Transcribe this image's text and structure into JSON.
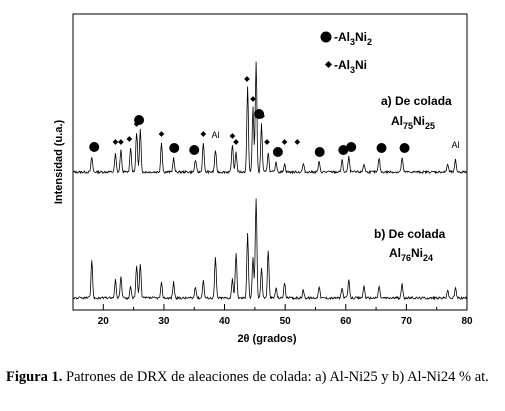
{
  "chart_data": {
    "type": "line",
    "xlabel": "2θ (grados)",
    "ylabel": "Intensidad (u.a.)",
    "xlim": [
      15,
      80
    ],
    "xticks": [
      20,
      30,
      40,
      50,
      60,
      70,
      80
    ],
    "grid": false,
    "legend": [
      {
        "marker": "circle",
        "prefix": "-Al",
        "sub": "3",
        "main": "Ni",
        "sub2": "2"
      },
      {
        "marker": "diamond",
        "prefix": "-Al",
        "sub": "3",
        "main": "Ni",
        "sub2": ""
      }
    ],
    "series": [
      {
        "label_line1": "a) De colada",
        "label_line2_main": "Al",
        "label_line2_sub": "75",
        "label_line2_main2": "Ni",
        "label_line2_sub2": "25",
        "peaks": [
          {
            "x": 18.1,
            "h": 15
          },
          {
            "x": 22.0,
            "h": 18
          },
          {
            "x": 22.9,
            "h": 22
          },
          {
            "x": 24.5,
            "h": 25
          },
          {
            "x": 25.5,
            "h": 40
          },
          {
            "x": 26.1,
            "h": 42
          },
          {
            "x": 29.6,
            "h": 30
          },
          {
            "x": 31.6,
            "h": 14
          },
          {
            "x": 35.2,
            "h": 12
          },
          {
            "x": 36.5,
            "h": 30
          },
          {
            "x": 38.5,
            "h": 22
          },
          {
            "x": 41.3,
            "h": 28
          },
          {
            "x": 41.9,
            "h": 20
          },
          {
            "x": 43.8,
            "h": 85
          },
          {
            "x": 44.7,
            "h": 65
          },
          {
            "x": 45.2,
            "h": 110
          },
          {
            "x": 46.1,
            "h": 48
          },
          {
            "x": 47.2,
            "h": 20
          },
          {
            "x": 48.5,
            "h": 10
          },
          {
            "x": 49.9,
            "h": 8
          },
          {
            "x": 53.0,
            "h": 8
          },
          {
            "x": 55.6,
            "h": 10
          },
          {
            "x": 59.4,
            "h": 12
          },
          {
            "x": 60.5,
            "h": 15
          },
          {
            "x": 63.0,
            "h": 8
          },
          {
            "x": 65.5,
            "h": 14
          },
          {
            "x": 69.3,
            "h": 14
          },
          {
            "x": 76.8,
            "h": 8
          },
          {
            "x": 78.1,
            "h": 12
          }
        ],
        "markers": [
          {
            "x": 18.5,
            "type": "circle"
          },
          {
            "x": 25.9,
            "type": "circle"
          },
          {
            "x": 31.7,
            "type": "circle"
          },
          {
            "x": 35.0,
            "type": "circle"
          },
          {
            "x": 45.7,
            "type": "circle"
          },
          {
            "x": 48.8,
            "type": "circle"
          },
          {
            "x": 55.7,
            "type": "circle"
          },
          {
            "x": 59.6,
            "type": "circle"
          },
          {
            "x": 60.9,
            "type": "circle"
          },
          {
            "x": 65.9,
            "type": "circle"
          },
          {
            "x": 69.7,
            "type": "circle"
          },
          {
            "x": 22.0,
            "type": "diamond"
          },
          {
            "x": 22.9,
            "type": "diamond"
          },
          {
            "x": 24.3,
            "type": "diamond"
          },
          {
            "x": 25.5,
            "type": "diamond"
          },
          {
            "x": 26.1,
            "type": "diamond"
          },
          {
            "x": 29.6,
            "type": "diamond"
          },
          {
            "x": 36.5,
            "type": "diamond"
          },
          {
            "x": 41.3,
            "type": "diamond"
          },
          {
            "x": 41.9,
            "type": "diamond"
          },
          {
            "x": 43.7,
            "type": "diamond"
          },
          {
            "x": 44.7,
            "type": "diamond"
          },
          {
            "x": 46.2,
            "type": "diamond"
          },
          {
            "x": 47.0,
            "type": "diamond"
          },
          {
            "x": 49.9,
            "type": "diamond"
          },
          {
            "x": 52.0,
            "type": "diamond"
          }
        ],
        "al_labels": [
          {
            "x": 38.5,
            "text": "Al"
          },
          {
            "x": 78.1,
            "text": "Al"
          }
        ]
      },
      {
        "label_line1": "b) De colada",
        "label_line2_main": "Al",
        "label_line2_sub": "76",
        "label_line2_main2": "Ni",
        "label_line2_sub2": "24",
        "peaks": [
          {
            "x": 18.1,
            "h": 38
          },
          {
            "x": 22.0,
            "h": 18
          },
          {
            "x": 22.9,
            "h": 22
          },
          {
            "x": 24.5,
            "h": 12
          },
          {
            "x": 25.5,
            "h": 32
          },
          {
            "x": 26.1,
            "h": 35
          },
          {
            "x": 29.6,
            "h": 15
          },
          {
            "x": 31.6,
            "h": 16
          },
          {
            "x": 35.2,
            "h": 12
          },
          {
            "x": 36.5,
            "h": 18
          },
          {
            "x": 38.5,
            "h": 40
          },
          {
            "x": 41.3,
            "h": 20
          },
          {
            "x": 41.9,
            "h": 45
          },
          {
            "x": 43.8,
            "h": 65
          },
          {
            "x": 44.7,
            "h": 40
          },
          {
            "x": 45.2,
            "h": 100
          },
          {
            "x": 46.1,
            "h": 30
          },
          {
            "x": 47.2,
            "h": 48
          },
          {
            "x": 48.5,
            "h": 10
          },
          {
            "x": 49.9,
            "h": 15
          },
          {
            "x": 53.0,
            "h": 8
          },
          {
            "x": 55.6,
            "h": 12
          },
          {
            "x": 59.4,
            "h": 10
          },
          {
            "x": 60.5,
            "h": 18
          },
          {
            "x": 63.0,
            "h": 12
          },
          {
            "x": 65.5,
            "h": 12
          },
          {
            "x": 69.3,
            "h": 14
          },
          {
            "x": 76.8,
            "h": 8
          },
          {
            "x": 78.1,
            "h": 10
          }
        ],
        "markers": [],
        "al_labels": []
      }
    ]
  },
  "caption": {
    "bold": "Figura 1.",
    "text": " Patrones de DRX de aleaciones de colada: a) Al-Ni25 y b) Al-Ni24 % at."
  }
}
